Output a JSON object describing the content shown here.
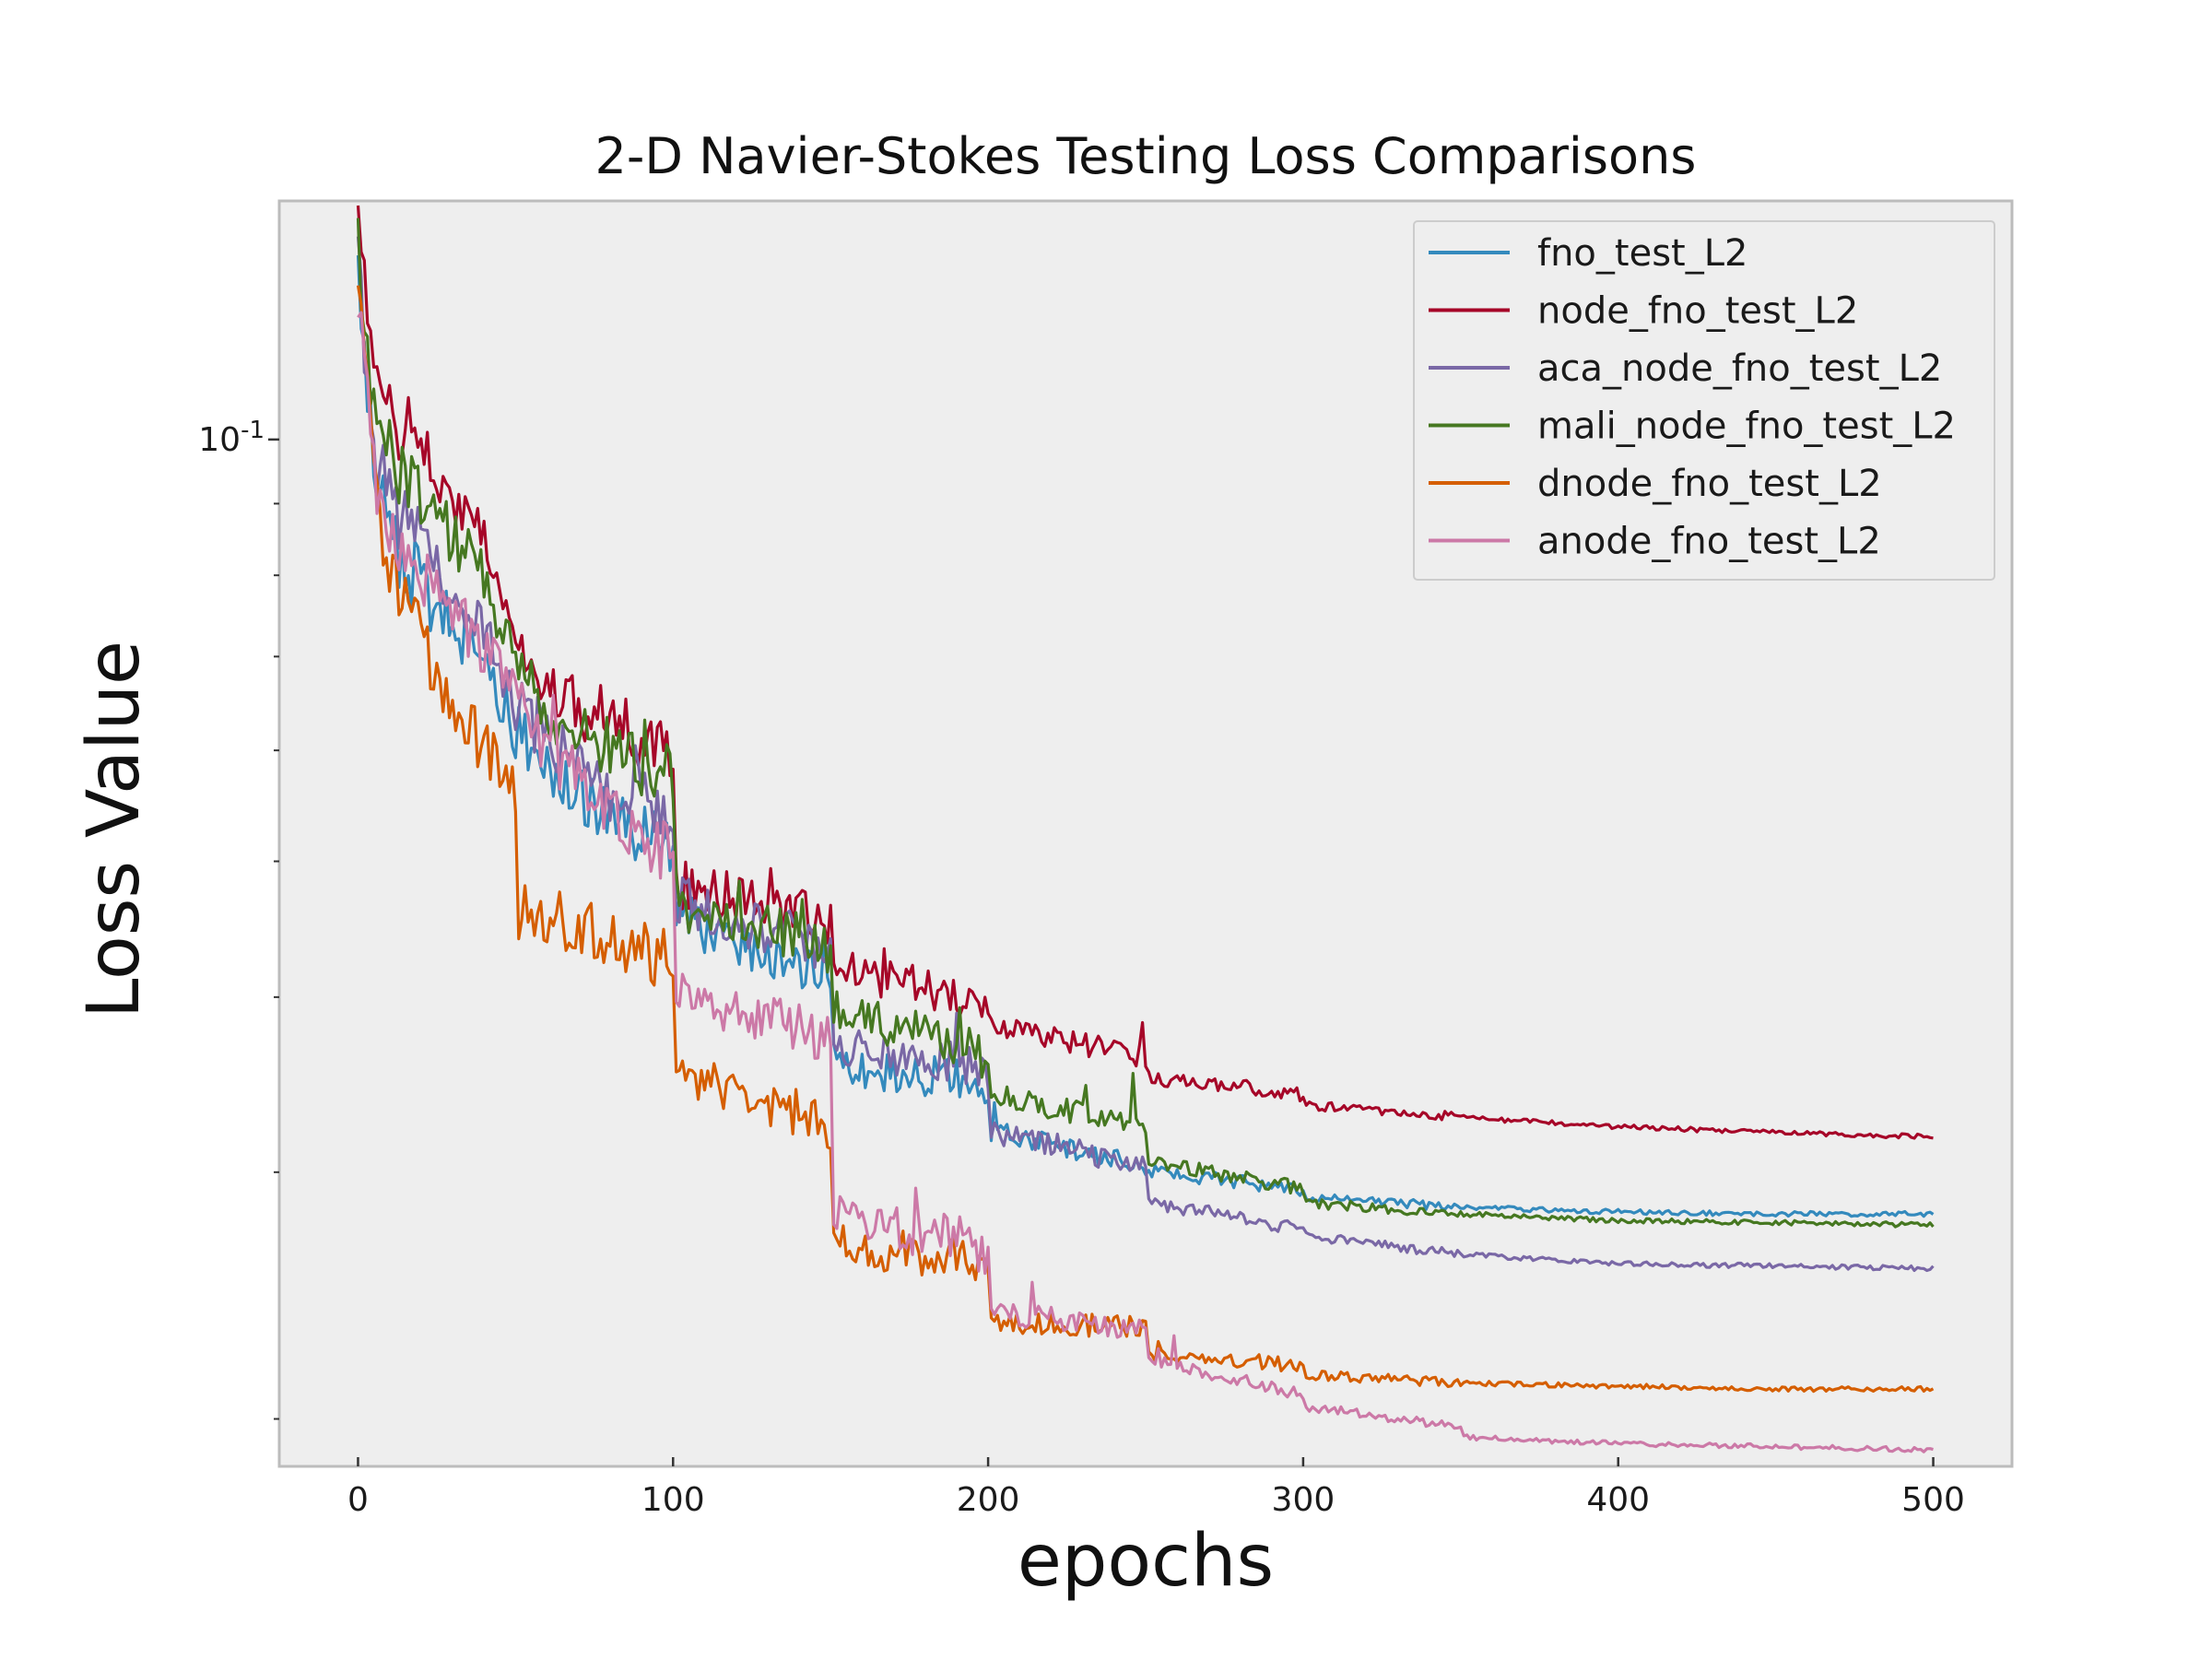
{
  "chart_data": {
    "type": "line",
    "title": "2-D Navier-Stokes Testing Loss Comparisons",
    "xlabel": "epochs",
    "ylabel": "Loss Value",
    "xlim": [
      -25,
      525
    ],
    "ylim": [
      0.0185,
      0.148
    ],
    "yscale": "log",
    "x_ticks": [
      0,
      100,
      200,
      300,
      400,
      500
    ],
    "y_major_ticks": [
      {
        "value": 0.1,
        "base": "10",
        "exp": "-1"
      }
    ],
    "y_minor_ticks": [
      0.02,
      0.03,
      0.04,
      0.05,
      0.06,
      0.07,
      0.08,
      0.09
    ],
    "grid": false,
    "legend_position": "top-right",
    "background": "#eeeeee",
    "series": [
      {
        "name": "fno_test_L2",
        "color": "#348abd",
        "points": [
          [
            0,
            0.13
          ],
          [
            5,
            0.095
          ],
          [
            10,
            0.085
          ],
          [
            20,
            0.078
          ],
          [
            30,
            0.073
          ],
          [
            40,
            0.07
          ],
          [
            50,
            0.062
          ],
          [
            60,
            0.058
          ],
          [
            70,
            0.056
          ],
          [
            80,
            0.053
          ],
          [
            90,
            0.052
          ],
          [
            100,
            0.051
          ],
          [
            101,
            0.046
          ],
          [
            120,
            0.043
          ],
          [
            140,
            0.042
          ],
          [
            150,
            0.041
          ],
          [
            151,
            0.036
          ],
          [
            170,
            0.035
          ],
          [
            190,
            0.035
          ],
          [
            200,
            0.034
          ],
          [
            201,
            0.032
          ],
          [
            230,
            0.031
          ],
          [
            250,
            0.03
          ],
          [
            251,
            0.03
          ],
          [
            280,
            0.0295
          ],
          [
            300,
            0.029
          ],
          [
            301,
            0.0288
          ],
          [
            350,
            0.0283
          ],
          [
            400,
            0.0281
          ],
          [
            450,
            0.028
          ],
          [
            500,
            0.028
          ]
        ]
      },
      {
        "name": "node_fno_test_L2",
        "color": "#a60628",
        "points": [
          [
            0,
            0.14
          ],
          [
            5,
            0.112
          ],
          [
            10,
            0.104
          ],
          [
            20,
            0.098
          ],
          [
            30,
            0.092
          ],
          [
            40,
            0.083
          ],
          [
            50,
            0.07
          ],
          [
            60,
            0.066
          ],
          [
            70,
            0.064
          ],
          [
            80,
            0.063
          ],
          [
            90,
            0.061
          ],
          [
            100,
            0.06
          ],
          [
            101,
            0.048
          ],
          [
            120,
            0.047
          ],
          [
            140,
            0.046
          ],
          [
            150,
            0.045
          ],
          [
            151,
            0.042
          ],
          [
            170,
            0.041
          ],
          [
            190,
            0.04
          ],
          [
            200,
            0.039
          ],
          [
            201,
            0.038
          ],
          [
            230,
            0.037
          ],
          [
            250,
            0.036
          ],
          [
            251,
            0.035
          ],
          [
            280,
            0.0345
          ],
          [
            300,
            0.034
          ],
          [
            301,
            0.0335
          ],
          [
            350,
            0.0328
          ],
          [
            400,
            0.0323
          ],
          [
            450,
            0.032
          ],
          [
            500,
            0.0318
          ]
        ]
      },
      {
        "name": "aca_node_fno_test_L2",
        "color": "#7a68a6",
        "points": [
          [
            0,
            0.132
          ],
          [
            5,
            0.098
          ],
          [
            10,
            0.09
          ],
          [
            20,
            0.084
          ],
          [
            30,
            0.078
          ],
          [
            40,
            0.074
          ],
          [
            50,
            0.065
          ],
          [
            60,
            0.061
          ],
          [
            70,
            0.058
          ],
          [
            80,
            0.055
          ],
          [
            90,
            0.054
          ],
          [
            100,
            0.053
          ],
          [
            101,
            0.047
          ],
          [
            120,
            0.045
          ],
          [
            140,
            0.044
          ],
          [
            150,
            0.043
          ],
          [
            151,
            0.037
          ],
          [
            170,
            0.036
          ],
          [
            190,
            0.036
          ],
          [
            200,
            0.035
          ],
          [
            201,
            0.032
          ],
          [
            230,
            0.031
          ],
          [
            250,
            0.03
          ],
          [
            251,
            0.0285
          ],
          [
            280,
            0.0278
          ],
          [
            300,
            0.0272
          ],
          [
            301,
            0.027
          ],
          [
            350,
            0.0262
          ],
          [
            400,
            0.0258
          ],
          [
            450,
            0.0257
          ],
          [
            500,
            0.0256
          ]
        ]
      },
      {
        "name": "mali_node_fno_test_L2",
        "color": "#467821",
        "points": [
          [
            0,
            0.135
          ],
          [
            5,
            0.105
          ],
          [
            10,
            0.097
          ],
          [
            20,
            0.09
          ],
          [
            30,
            0.085
          ],
          [
            40,
            0.08
          ],
          [
            50,
            0.068
          ],
          [
            60,
            0.064
          ],
          [
            70,
            0.062
          ],
          [
            80,
            0.06
          ],
          [
            90,
            0.058
          ],
          [
            100,
            0.057
          ],
          [
            101,
            0.046
          ],
          [
            120,
            0.045
          ],
          [
            140,
            0.044
          ],
          [
            150,
            0.043
          ],
          [
            151,
            0.039
          ],
          [
            170,
            0.038
          ],
          [
            190,
            0.037
          ],
          [
            200,
            0.036
          ],
          [
            201,
            0.034
          ],
          [
            230,
            0.033
          ],
          [
            250,
            0.032
          ],
          [
            251,
            0.0305
          ],
          [
            280,
            0.0297
          ],
          [
            300,
            0.0292
          ],
          [
            301,
            0.0285
          ],
          [
            350,
            0.028
          ],
          [
            400,
            0.0277
          ],
          [
            450,
            0.0276
          ],
          [
            500,
            0.0275
          ]
        ]
      },
      {
        "name": "dnode_fno_test_L2",
        "color": "#d55e00",
        "points": [
          [
            0,
            0.135
          ],
          [
            5,
            0.092
          ],
          [
            10,
            0.082
          ],
          [
            20,
            0.072
          ],
          [
            30,
            0.064
          ],
          [
            40,
            0.06
          ],
          [
            50,
            0.056
          ],
          [
            51,
            0.046
          ],
          [
            70,
            0.045
          ],
          [
            90,
            0.043
          ],
          [
            100,
            0.042
          ],
          [
            101,
            0.035
          ],
          [
            120,
            0.034
          ],
          [
            140,
            0.033
          ],
          [
            150,
            0.032
          ],
          [
            151,
            0.027
          ],
          [
            170,
            0.026
          ],
          [
            190,
            0.026
          ],
          [
            200,
            0.025
          ],
          [
            201,
            0.0235
          ],
          [
            230,
            0.0233
          ],
          [
            250,
            0.0232
          ],
          [
            251,
            0.0222
          ],
          [
            280,
            0.022
          ],
          [
            300,
            0.0218
          ],
          [
            301,
            0.0215
          ],
          [
            350,
            0.0212
          ],
          [
            400,
            0.0211
          ],
          [
            450,
            0.021
          ],
          [
            500,
            0.021
          ]
        ]
      },
      {
        "name": "anode_fno_test_L2",
        "color": "#cc79a7",
        "points": [
          [
            0,
            0.127
          ],
          [
            5,
            0.093
          ],
          [
            10,
            0.087
          ],
          [
            20,
            0.08
          ],
          [
            30,
            0.075
          ],
          [
            40,
            0.07
          ],
          [
            50,
            0.065
          ],
          [
            60,
            0.06
          ],
          [
            70,
            0.057
          ],
          [
            80,
            0.054
          ],
          [
            90,
            0.052
          ],
          [
            100,
            0.05
          ],
          [
            101,
            0.04
          ],
          [
            120,
            0.039
          ],
          [
            140,
            0.038
          ],
          [
            150,
            0.037
          ],
          [
            151,
            0.028
          ],
          [
            170,
            0.027
          ],
          [
            190,
            0.027
          ],
          [
            200,
            0.026
          ],
          [
            201,
            0.0238
          ],
          [
            230,
            0.0234
          ],
          [
            250,
            0.023
          ],
          [
            251,
            0.022
          ],
          [
            280,
            0.0213
          ],
          [
            300,
            0.0208
          ],
          [
            301,
            0.0204
          ],
          [
            350,
            0.0197
          ],
          [
            351,
            0.0194
          ],
          [
            400,
            0.0192
          ],
          [
            450,
            0.0191
          ],
          [
            500,
            0.019
          ]
        ]
      }
    ]
  }
}
